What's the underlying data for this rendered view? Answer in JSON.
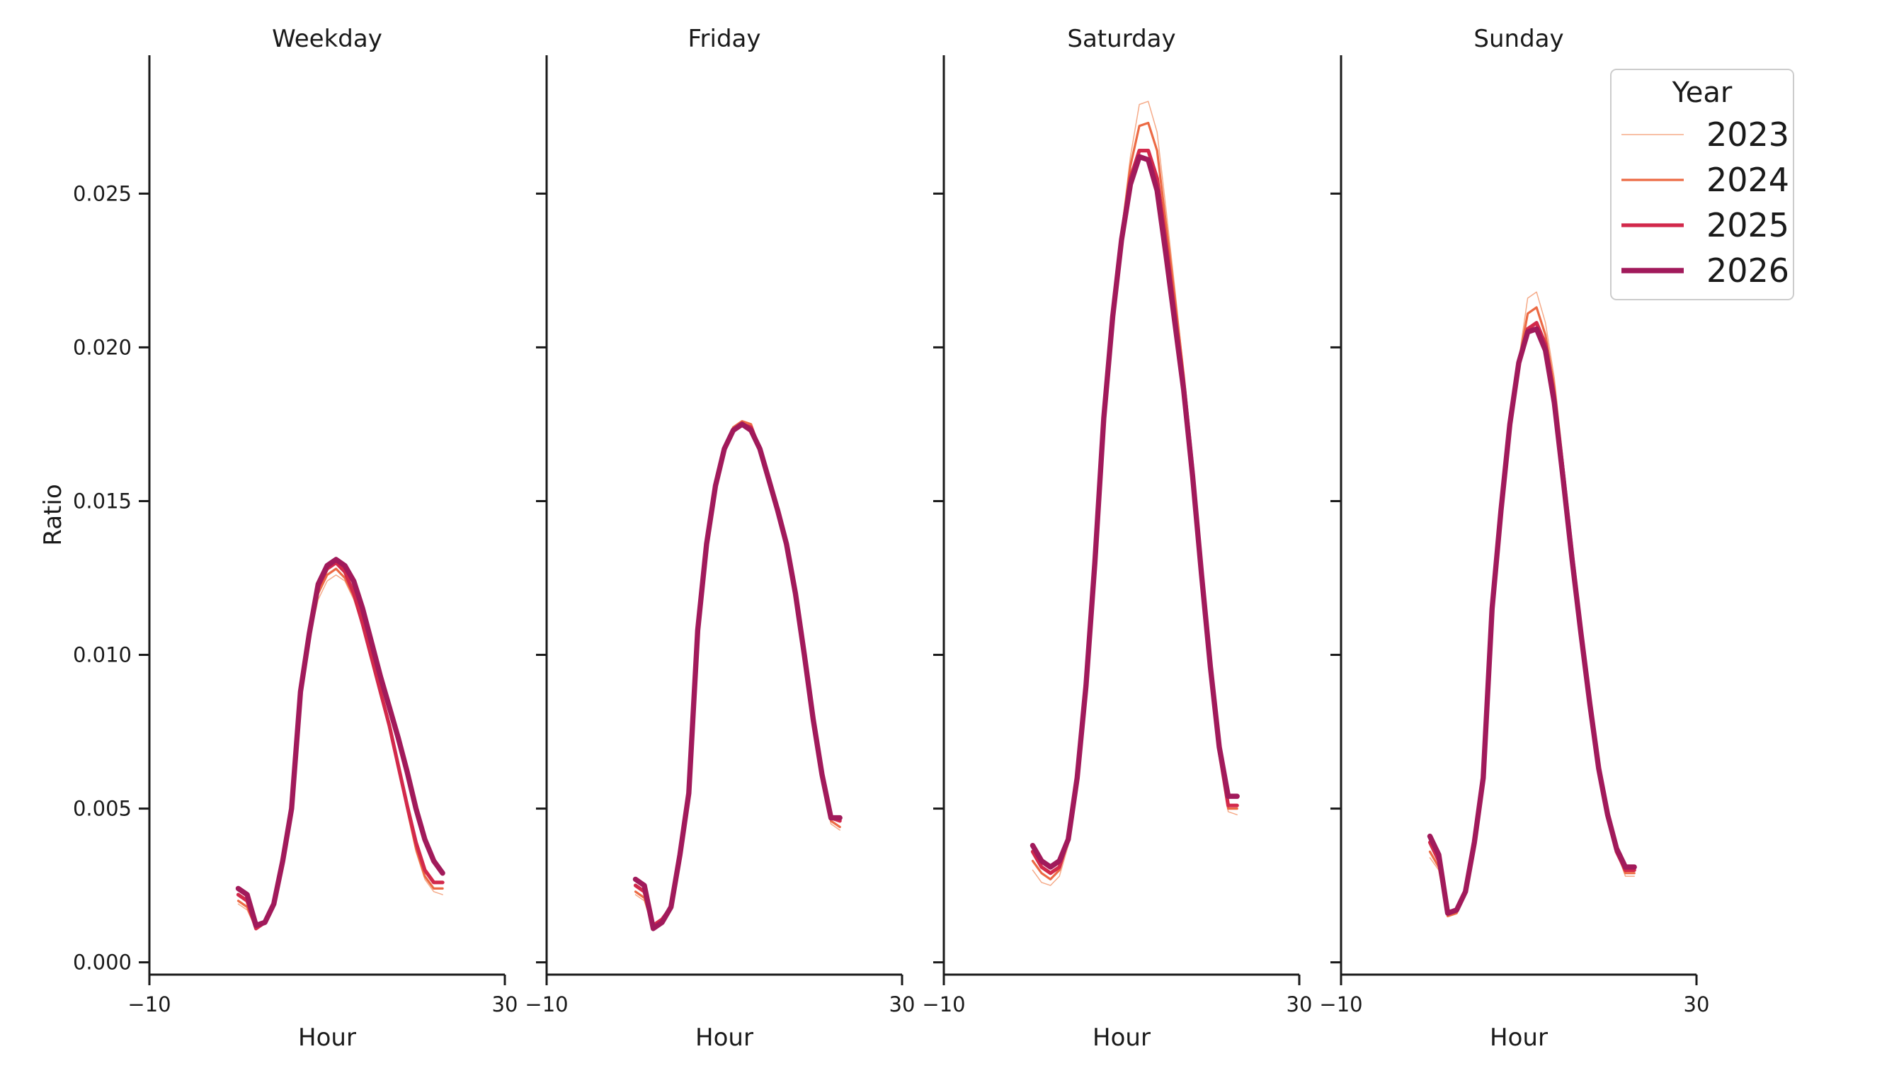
{
  "chart_data": {
    "type": "line",
    "ylabel": "Ratio",
    "ylim": [
      -0.0004,
      0.0295
    ],
    "yticks": [
      0.0,
      0.005,
      0.01,
      0.015,
      0.02,
      0.025
    ],
    "ytick_labels": [
      "0.000",
      "0.005",
      "0.010",
      "0.015",
      "0.020",
      "0.025"
    ],
    "xlim": [
      -10,
      30
    ],
    "xticks": [
      -10,
      30
    ],
    "xtick_labels": [
      "−10",
      "30"
    ],
    "legend": {
      "title": "Year",
      "position": "top-right",
      "entries": [
        "2023",
        "2024",
        "2025",
        "2026"
      ]
    },
    "series_styles": [
      {
        "name": "2023",
        "color": "#f4a582",
        "width": 1.5,
        "opacity": 0.95
      },
      {
        "name": "2024",
        "color": "#ec6a44",
        "width": 3.2,
        "opacity": 1.0
      },
      {
        "name": "2025",
        "color": "#d2294b",
        "width": 5.2,
        "opacity": 1.0
      },
      {
        "name": "2026",
        "color": "#a11a5b",
        "width": 7.4,
        "opacity": 1.0
      }
    ],
    "hours": [
      0,
      1,
      2,
      3,
      4,
      5,
      6,
      7,
      8,
      9,
      10,
      11,
      12,
      13,
      14,
      15,
      16,
      17,
      18,
      19,
      20,
      21,
      22,
      23
    ],
    "panels": [
      {
        "title": "Weekday",
        "series": [
          {
            "name": "2023",
            "values": [
              0.0019,
              0.0017,
              0.0011,
              0.0013,
              0.0019,
              0.0033,
              0.0049,
              0.0086,
              0.0105,
              0.0118,
              0.0124,
              0.0126,
              0.0124,
              0.0118,
              0.0109,
              0.0098,
              0.0087,
              0.0076,
              0.0063,
              0.0049,
              0.0036,
              0.0027,
              0.0023,
              0.0022
            ]
          },
          {
            "name": "2024",
            "values": [
              0.002,
              0.0018,
              0.0011,
              0.0013,
              0.0019,
              0.0033,
              0.0049,
              0.0087,
              0.0106,
              0.012,
              0.0126,
              0.0128,
              0.0125,
              0.0119,
              0.011,
              0.0099,
              0.0088,
              0.0077,
              0.0064,
              0.005,
              0.0037,
              0.0028,
              0.0024,
              0.0024
            ]
          },
          {
            "name": "2025",
            "values": [
              0.0022,
              0.002,
              0.0011,
              0.0013,
              0.0019,
              0.0033,
              0.0049,
              0.0088,
              0.0107,
              0.0122,
              0.0128,
              0.013,
              0.0127,
              0.012,
              0.011,
              0.0099,
              0.0088,
              0.0077,
              0.0064,
              0.0051,
              0.0039,
              0.003,
              0.0026,
              0.0026
            ]
          },
          {
            "name": "2026",
            "values": [
              0.0024,
              0.0022,
              0.0012,
              0.0013,
              0.0019,
              0.0033,
              0.005,
              0.0088,
              0.0107,
              0.0123,
              0.0129,
              0.0131,
              0.0129,
              0.0124,
              0.0115,
              0.0104,
              0.0093,
              0.0083,
              0.0073,
              0.0062,
              0.005,
              0.004,
              0.0033,
              0.0029
            ]
          }
        ]
      },
      {
        "title": "Friday",
        "series": [
          {
            "name": "2023",
            "values": [
              0.0022,
              0.002,
              0.0011,
              0.0013,
              0.0018,
              0.0035,
              0.0055,
              0.0108,
              0.0135,
              0.0155,
              0.0167,
              0.0174,
              0.0176,
              0.0175,
              0.0167,
              0.0156,
              0.0145,
              0.0134,
              0.0118,
              0.0098,
              0.0078,
              0.006,
              0.0045,
              0.0043
            ]
          },
          {
            "name": "2024",
            "values": [
              0.0023,
              0.0021,
              0.0011,
              0.0013,
              0.0018,
              0.0035,
              0.0055,
              0.0108,
              0.0136,
              0.0155,
              0.0167,
              0.0174,
              0.0176,
              0.0175,
              0.0167,
              0.0156,
              0.0146,
              0.0135,
              0.0119,
              0.0099,
              0.0078,
              0.0061,
              0.0046,
              0.0044
            ]
          },
          {
            "name": "2025",
            "values": [
              0.0025,
              0.0023,
              0.0012,
              0.0014,
              0.0018,
              0.0035,
              0.0055,
              0.0109,
              0.0136,
              0.0155,
              0.0167,
              0.0173,
              0.0175,
              0.0174,
              0.0167,
              0.0157,
              0.0147,
              0.0136,
              0.012,
              0.01,
              0.0079,
              0.0061,
              0.0047,
              0.0046
            ]
          },
          {
            "name": "2026",
            "values": [
              0.0027,
              0.0025,
              0.0011,
              0.0013,
              0.0018,
              0.0035,
              0.0055,
              0.0108,
              0.0136,
              0.0155,
              0.0167,
              0.0173,
              0.0175,
              0.0173,
              0.0167,
              0.0157,
              0.0147,
              0.0136,
              0.012,
              0.01,
              0.0079,
              0.0061,
              0.0047,
              0.0047
            ]
          }
        ]
      },
      {
        "title": "Saturday",
        "series": [
          {
            "name": "2023",
            "values": [
              0.003,
              0.0026,
              0.0025,
              0.0028,
              0.0038,
              0.006,
              0.009,
              0.013,
              0.0178,
              0.0212,
              0.0238,
              0.0262,
              0.0279,
              0.028,
              0.027,
              0.0245,
              0.0219,
              0.0192,
              0.0163,
              0.0129,
              0.0095,
              0.0066,
              0.0049,
              0.0048
            ]
          },
          {
            "name": "2024",
            "values": [
              0.0033,
              0.0029,
              0.0027,
              0.003,
              0.004,
              0.006,
              0.009,
              0.013,
              0.0178,
              0.0211,
              0.0237,
              0.0259,
              0.0272,
              0.0273,
              0.0264,
              0.024,
              0.0216,
              0.0191,
              0.0162,
              0.0128,
              0.0096,
              0.0068,
              0.005,
              0.005
            ]
          },
          {
            "name": "2025",
            "values": [
              0.0036,
              0.0031,
              0.0029,
              0.0031,
              0.004,
              0.006,
              0.009,
              0.013,
              0.0177,
              0.021,
              0.0235,
              0.0255,
              0.0264,
              0.0264,
              0.0255,
              0.0234,
              0.0211,
              0.0188,
              0.016,
              0.0127,
              0.0096,
              0.0069,
              0.0051,
              0.0051
            ]
          },
          {
            "name": "2026",
            "values": [
              0.0038,
              0.0033,
              0.0031,
              0.0033,
              0.004,
              0.006,
              0.009,
              0.013,
              0.0177,
              0.021,
              0.0235,
              0.0253,
              0.0262,
              0.0261,
              0.0251,
              0.023,
              0.0208,
              0.0186,
              0.0158,
              0.0126,
              0.0096,
              0.007,
              0.0054,
              0.0054
            ]
          }
        ]
      },
      {
        "title": "Sunday",
        "series": [
          {
            "name": "2023",
            "values": [
              0.0034,
              0.003,
              0.0015,
              0.0016,
              0.0022,
              0.0038,
              0.006,
              0.0116,
              0.0148,
              0.0174,
              0.0196,
              0.0216,
              0.0218,
              0.0208,
              0.019,
              0.0163,
              0.0135,
              0.0108,
              0.0085,
              0.0064,
              0.0048,
              0.0036,
              0.0028,
              0.0028
            ]
          },
          {
            "name": "2024",
            "values": [
              0.0036,
              0.0031,
              0.0015,
              0.0016,
              0.0022,
              0.0038,
              0.006,
              0.0116,
              0.0148,
              0.0174,
              0.0195,
              0.0211,
              0.0213,
              0.0204,
              0.0187,
              0.0161,
              0.0134,
              0.0108,
              0.0085,
              0.0064,
              0.0048,
              0.0036,
              0.0029,
              0.0029
            ]
          },
          {
            "name": "2025",
            "values": [
              0.0039,
              0.0033,
              0.0016,
              0.0017,
              0.0023,
              0.0039,
              0.006,
              0.0116,
              0.0148,
              0.0174,
              0.0194,
              0.0206,
              0.0208,
              0.0201,
              0.0184,
              0.0159,
              0.0133,
              0.0108,
              0.0085,
              0.0064,
              0.0048,
              0.0036,
              0.003,
              0.003
            ]
          },
          {
            "name": "2026",
            "values": [
              0.0041,
              0.0035,
              0.0016,
              0.0017,
              0.0023,
              0.0039,
              0.006,
              0.0115,
              0.0147,
              0.0175,
              0.0195,
              0.0205,
              0.0206,
              0.0199,
              0.0182,
              0.0157,
              0.0131,
              0.0107,
              0.0084,
              0.0063,
              0.0048,
              0.0037,
              0.0031,
              0.0031
            ]
          }
        ]
      }
    ]
  }
}
